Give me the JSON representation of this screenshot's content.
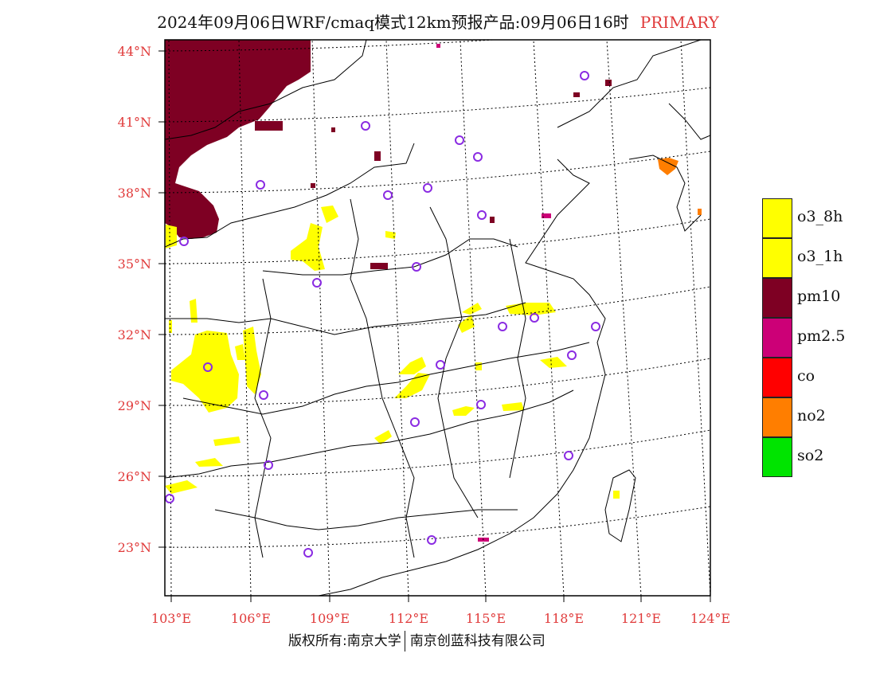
{
  "header": {
    "title": "2024年09月06日WRF/cmaq模式12km预报产品:09月06日16时",
    "tag": "PRIMARY"
  },
  "axes": {
    "lat_labels": [
      "44°N",
      "41°N",
      "38°N",
      "35°N",
      "32°N",
      "29°N",
      "26°N",
      "23°N"
    ],
    "lon_labels": [
      "103°E",
      "106°E",
      "109°E",
      "112°E",
      "115°E",
      "118°E",
      "121°E",
      "124°E"
    ],
    "label_color": "#e03a3a"
  },
  "legend": {
    "items": [
      {
        "label": "o3_8h",
        "color": "#ffff00"
      },
      {
        "label": "o3_1h",
        "color": "#ffff00"
      },
      {
        "label": "pm10",
        "color": "#7e0023"
      },
      {
        "label": "pm2.5",
        "color": "#cc0077"
      },
      {
        "label": "co",
        "color": "#ff0000"
      },
      {
        "label": "no2",
        "color": "#ff7e00"
      },
      {
        "label": "so2",
        "color": "#00e400"
      }
    ]
  },
  "footer": {
    "left": "版权所有:南京大学",
    "right": "南京创蓝科技有限公司"
  },
  "colors": {
    "pm10": "#7e0023",
    "o3": "#ffff00",
    "pm25": "#cc0077",
    "no2": "#ff7e00",
    "station_marker": "#8a2be2"
  }
}
